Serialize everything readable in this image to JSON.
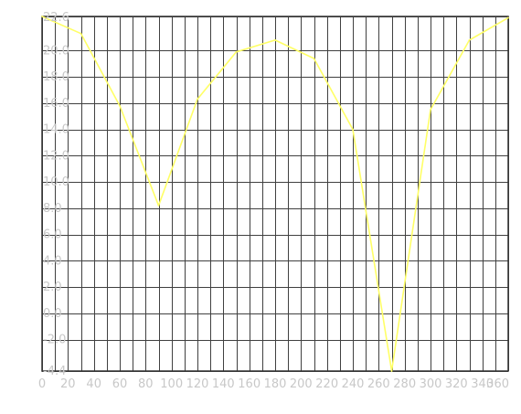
{
  "chart_data": {
    "type": "line",
    "title": "",
    "xlabel": "",
    "ylabel": "",
    "xlim": [
      0,
      360
    ],
    "ylim": [
      -4.4,
      22.6
    ],
    "grid": true,
    "legend": "none",
    "x_ticks": [
      0,
      20,
      40,
      60,
      80,
      100,
      120,
      140,
      160,
      180,
      200,
      220,
      240,
      260,
      280,
      300,
      320,
      340,
      360
    ],
    "x_tick_labels": [
      "0",
      "20",
      "40",
      "60",
      "80",
      "100",
      "120",
      "140",
      "160",
      "180",
      "200",
      "220",
      "240",
      "260",
      "280",
      "300",
      "320",
      "340",
      "360"
    ],
    "y_ticks": [
      -4.4,
      -2.0,
      0.0,
      2.0,
      4.0,
      6.0,
      8.0,
      10.0,
      12.0,
      14.0,
      16.0,
      18.0,
      20.0,
      22.6
    ],
    "y_tick_labels": [
      "-4.4",
      "-2.0",
      "0.0",
      "2.0",
      "4.0",
      "6.0",
      "8.0",
      "10.0",
      "12.0",
      "14.0",
      "16.0",
      "18.0",
      "20.0",
      "22.6"
    ],
    "series": [
      {
        "x": [
          0,
          30,
          60,
          90,
          120,
          150,
          180,
          210,
          240,
          270,
          300,
          330,
          360
        ],
        "values": [
          22.6,
          21.3,
          15.8,
          8.2,
          16.3,
          19.9,
          20.8,
          19.4,
          14.0,
          -4.4,
          15.5,
          20.8,
          22.5
        ]
      }
    ]
  },
  "colors": {
    "background": "#ffffff",
    "plot_background": "#ffffff",
    "grid": "#404040",
    "frame": "#333333",
    "line": "#ffff66",
    "tick_label": "#c8c8c8"
  }
}
